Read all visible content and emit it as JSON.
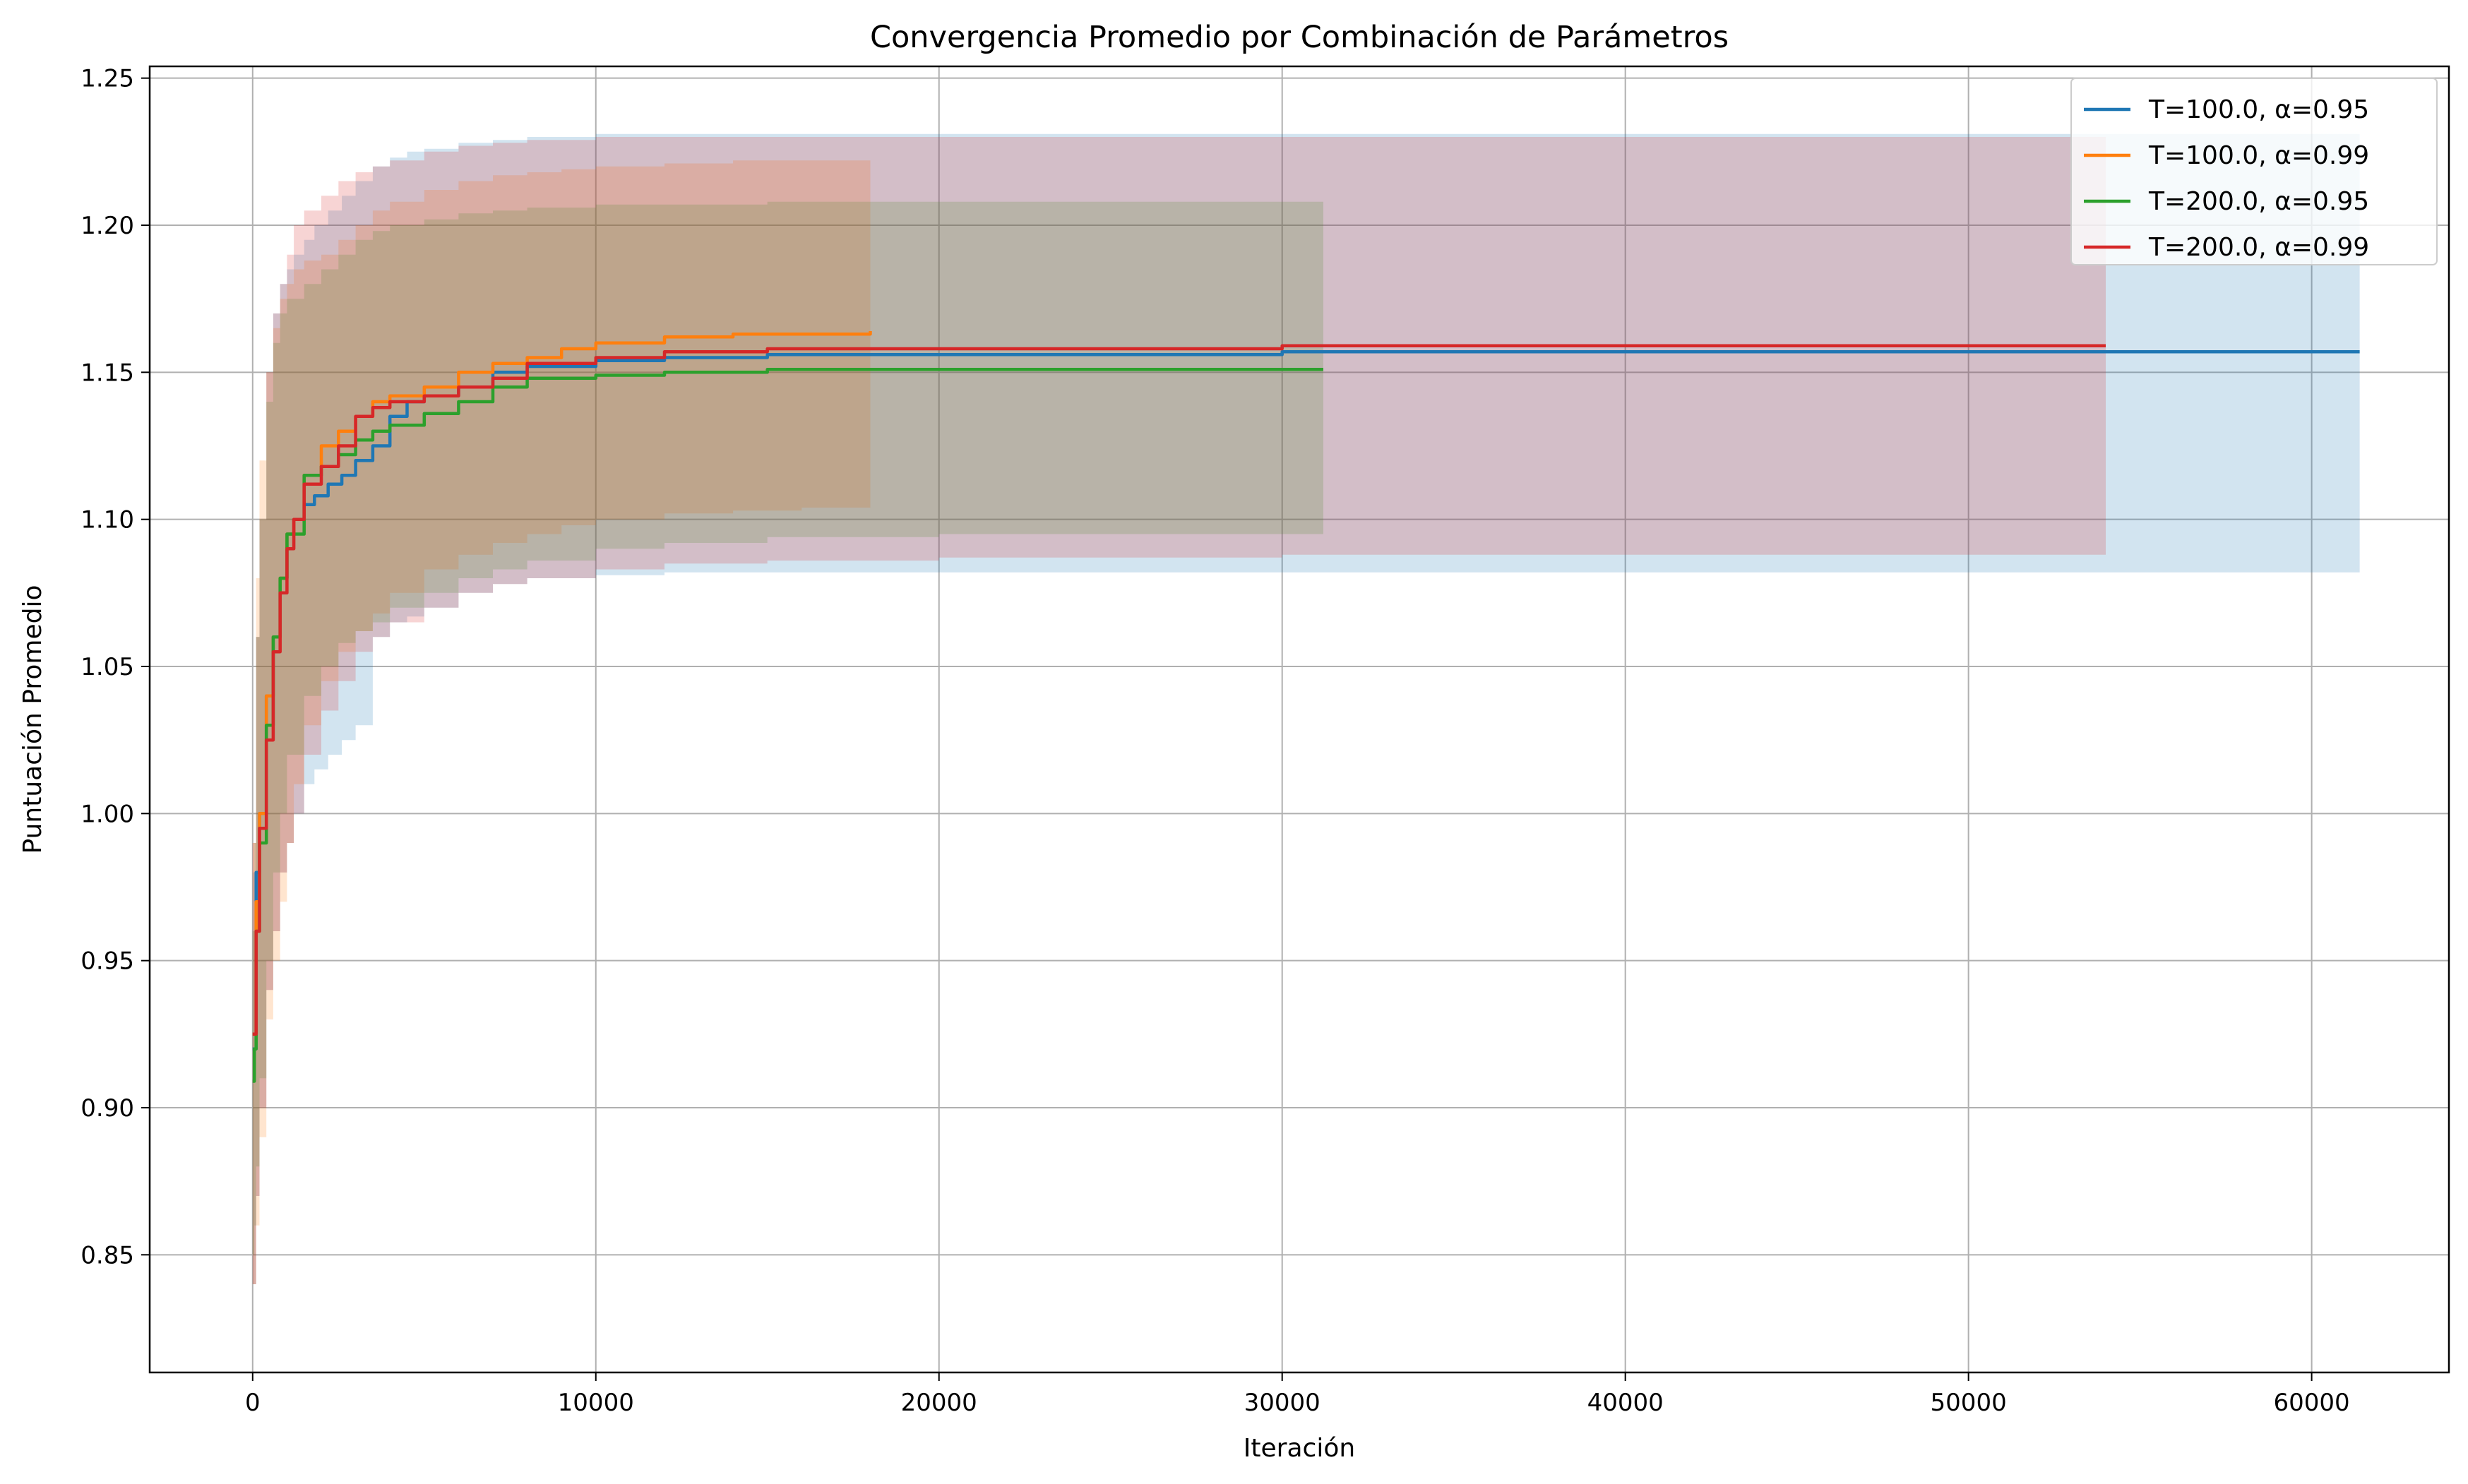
{
  "chart_data": {
    "type": "line",
    "title": "Convergencia Promedio por Combinación de Parámetros",
    "xlabel": "Iteración",
    "ylabel": "Puntuación Promedio",
    "xlim": [
      -3000,
      64000
    ],
    "ylim": [
      0.81,
      1.254
    ],
    "xticks": [
      0,
      10000,
      20000,
      30000,
      40000,
      50000,
      60000
    ],
    "yticks": [
      0.85,
      0.9,
      0.95,
      1.0,
      1.05,
      1.1,
      1.15,
      1.2,
      1.25
    ],
    "xtick_labels": [
      "0",
      "10000",
      "20000",
      "30000",
      "40000",
      "50000",
      "60000"
    ],
    "ytick_labels": [
      "0.85",
      "0.90",
      "0.95",
      "1.00",
      "1.05",
      "1.10",
      "1.15",
      "1.20",
      "1.25"
    ],
    "grid": true,
    "legend_position": "top-right",
    "series": [
      {
        "name": "T=100.0, α=0.95",
        "color": "#1f77b4",
        "x": [
          0,
          100,
          200,
          400,
          600,
          800,
          1000,
          1200,
          1500,
          1800,
          2200,
          2600,
          3000,
          3500,
          4000,
          4500,
          5000,
          6000,
          7000,
          8000,
          10000,
          12000,
          15000,
          20000,
          30000,
          40000,
          50000,
          61400
        ],
        "y": [
          0.92,
          0.98,
          1.0,
          1.04,
          1.06,
          1.08,
          1.095,
          1.1,
          1.105,
          1.108,
          1.112,
          1.115,
          1.12,
          1.125,
          1.135,
          1.14,
          1.142,
          1.145,
          1.15,
          1.152,
          1.154,
          1.155,
          1.156,
          1.156,
          1.157,
          1.157,
          1.157,
          1.157
        ],
        "lower": [
          0.84,
          0.87,
          0.9,
          0.94,
          0.96,
          0.98,
          0.99,
          1.0,
          1.01,
          1.015,
          1.02,
          1.025,
          1.03,
          1.06,
          1.065,
          1.067,
          1.07,
          1.075,
          1.078,
          1.08,
          1.081,
          1.082,
          1.082,
          1.082,
          1.082,
          1.082,
          1.082,
          1.082
        ],
        "upper": [
          0.98,
          1.06,
          1.1,
          1.15,
          1.17,
          1.18,
          1.185,
          1.19,
          1.195,
          1.2,
          1.205,
          1.21,
          1.215,
          1.22,
          1.223,
          1.225,
          1.226,
          1.228,
          1.229,
          1.23,
          1.231,
          1.231,
          1.231,
          1.231,
          1.231,
          1.231,
          1.231,
          1.231
        ]
      },
      {
        "name": "T=100.0, α=0.99",
        "color": "#ff7f0e",
        "x": [
          0,
          100,
          200,
          400,
          600,
          800,
          1000,
          1200,
          1500,
          2000,
          2500,
          3000,
          3500,
          4000,
          5000,
          6000,
          7000,
          8000,
          9000,
          10000,
          12000,
          14000,
          16000,
          18000
        ],
        "y": [
          0.925,
          0.97,
          1.0,
          1.04,
          1.06,
          1.08,
          1.095,
          1.1,
          1.115,
          1.125,
          1.13,
          1.135,
          1.14,
          1.142,
          1.145,
          1.15,
          1.153,
          1.155,
          1.158,
          1.16,
          1.162,
          1.163,
          1.163,
          1.164
        ],
        "lower": [
          0.84,
          0.86,
          0.89,
          0.93,
          0.95,
          0.97,
          0.99,
          1.01,
          1.03,
          1.045,
          1.055,
          1.062,
          1.068,
          1.075,
          1.083,
          1.088,
          1.092,
          1.095,
          1.098,
          1.1,
          1.102,
          1.103,
          1.104,
          1.105
        ],
        "upper": [
          0.99,
          1.08,
          1.12,
          1.15,
          1.165,
          1.175,
          1.18,
          1.185,
          1.188,
          1.19,
          1.195,
          1.2,
          1.205,
          1.208,
          1.212,
          1.215,
          1.217,
          1.218,
          1.219,
          1.22,
          1.221,
          1.222,
          1.222,
          1.222
        ]
      },
      {
        "name": "T=200.0, α=0.95",
        "color": "#2ca02c",
        "x": [
          0,
          50,
          100,
          200,
          400,
          600,
          800,
          1000,
          1500,
          2000,
          2500,
          3000,
          3500,
          4000,
          5000,
          6000,
          7000,
          8000,
          10000,
          12000,
          15000,
          20000,
          25000,
          31200
        ],
        "y": [
          0.909,
          0.92,
          0.96,
          0.99,
          1.03,
          1.06,
          1.08,
          1.095,
          1.115,
          1.118,
          1.122,
          1.127,
          1.13,
          1.132,
          1.136,
          1.14,
          1.145,
          1.148,
          1.149,
          1.15,
          1.151,
          1.151,
          1.151,
          1.151
        ],
        "lower": [
          0.85,
          0.86,
          0.88,
          0.91,
          0.95,
          0.98,
          1.0,
          1.02,
          1.04,
          1.05,
          1.058,
          1.062,
          1.065,
          1.07,
          1.075,
          1.08,
          1.083,
          1.086,
          1.09,
          1.092,
          1.094,
          1.095,
          1.095,
          1.096
        ],
        "upper": [
          0.96,
          0.99,
          1.06,
          1.1,
          1.14,
          1.16,
          1.17,
          1.175,
          1.18,
          1.185,
          1.19,
          1.195,
          1.198,
          1.2,
          1.202,
          1.204,
          1.205,
          1.206,
          1.207,
          1.207,
          1.208,
          1.208,
          1.208,
          1.208
        ]
      },
      {
        "name": "T=200.0, α=0.99",
        "color": "#d62728",
        "x": [
          0,
          100,
          200,
          400,
          600,
          800,
          1000,
          1200,
          1500,
          2000,
          2500,
          3000,
          3500,
          4000,
          5000,
          6000,
          7000,
          8000,
          10000,
          12000,
          15000,
          20000,
          30000,
          40000,
          54000
        ],
        "y": [
          0.925,
          0.96,
          0.995,
          1.025,
          1.055,
          1.075,
          1.09,
          1.1,
          1.112,
          1.118,
          1.125,
          1.135,
          1.138,
          1.14,
          1.142,
          1.145,
          1.148,
          1.153,
          1.155,
          1.157,
          1.158,
          1.158,
          1.159,
          1.159,
          1.159
        ],
        "lower": [
          0.84,
          0.87,
          0.9,
          0.94,
          0.96,
          0.98,
          0.99,
          1.0,
          1.02,
          1.035,
          1.045,
          1.055,
          1.06,
          1.065,
          1.07,
          1.075,
          1.078,
          1.08,
          1.083,
          1.085,
          1.086,
          1.087,
          1.088,
          1.088,
          1.088
        ],
        "upper": [
          0.99,
          1.06,
          1.1,
          1.15,
          1.17,
          1.18,
          1.19,
          1.2,
          1.205,
          1.21,
          1.215,
          1.218,
          1.22,
          1.222,
          1.225,
          1.227,
          1.228,
          1.229,
          1.23,
          1.23,
          1.23,
          1.23,
          1.23,
          1.23,
          1.23
        ]
      }
    ]
  }
}
